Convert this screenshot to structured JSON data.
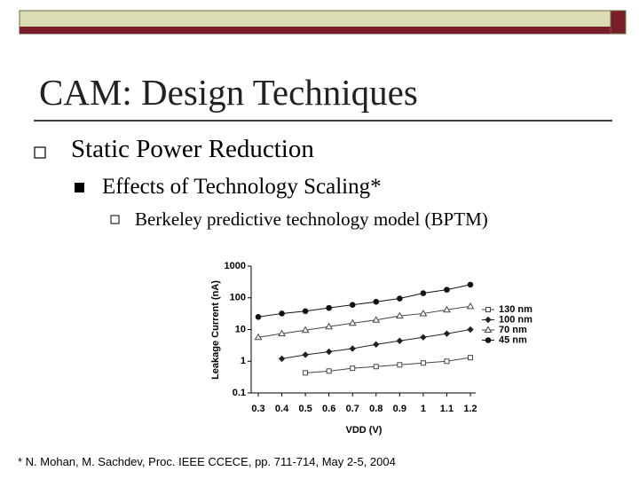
{
  "slide": {
    "title": "CAM: Design Techniques",
    "bullets": [
      {
        "text": "Static Power Reduction",
        "level": 1
      },
      {
        "text": "Effects of Technology Scaling*",
        "level": 2
      },
      {
        "text": "Berkeley predictive technology model (BPTM)",
        "level": 3
      }
    ],
    "footnote": "* N. Mohan, M. Sachdev, Proc. IEEE CCECE, pp. 711-714, May 2-5, 2004"
  },
  "chart_data": {
    "type": "line",
    "x_label": "VDD (V)",
    "y_label": "Leakage Current (nA)",
    "x": [
      0.3,
      0.4,
      0.5,
      0.6,
      0.7,
      0.8,
      0.9,
      1,
      1.1,
      1.2
    ],
    "series": [
      {
        "name": "130 nm",
        "color": "#444444",
        "marker": "square-open",
        "values": [
          null,
          null,
          0.43,
          0.49,
          0.6,
          0.68,
          0.77,
          0.88,
          1.0,
          1.3
        ]
      },
      {
        "name": "100 nm",
        "color": "#222222",
        "marker": "diamond-filled",
        "values": [
          null,
          1.2,
          1.6,
          2.0,
          2.5,
          3.4,
          4.4,
          5.7,
          7.4,
          10
        ]
      },
      {
        "name": "70 nm",
        "color": "#444444",
        "marker": "triangle-open",
        "values": [
          5.7,
          7.4,
          9.5,
          12.3,
          16,
          20,
          27,
          32,
          42,
          54
        ]
      },
      {
        "name": "45 nm",
        "color": "#111111",
        "marker": "circle-filled",
        "values": [
          25,
          32,
          38,
          48,
          60,
          75,
          95,
          140,
          180,
          260
        ]
      }
    ],
    "xlim": [
      0.3,
      1.2
    ],
    "xticks": [
      0.3,
      0.4,
      0.5,
      0.6,
      0.7,
      0.8,
      0.9,
      1,
      1.1,
      1.2
    ],
    "ylim": [
      0.1,
      1000
    ],
    "yticks": [
      0.1,
      1,
      10,
      100,
      1000
    ],
    "log_y": true,
    "legend": "right"
  }
}
